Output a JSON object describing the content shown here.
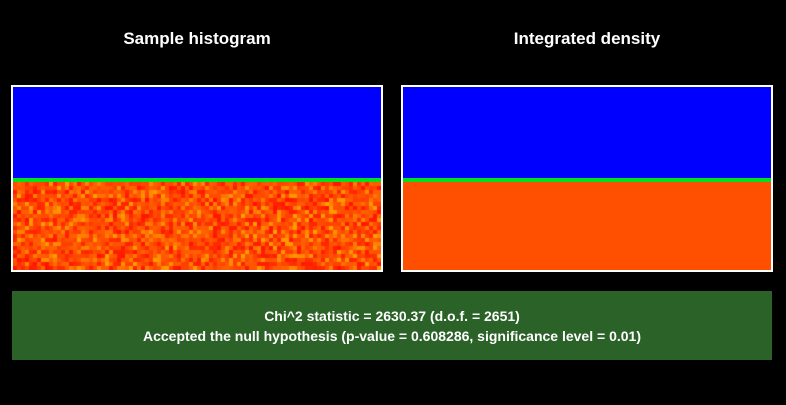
{
  "panels": {
    "left": {
      "title": "Sample histogram",
      "fill": "noisy",
      "colors": {
        "upper": "#0000ff",
        "divider": "#00e020",
        "lower_base": "#ff4a00"
      }
    },
    "right": {
      "title": "Integrated density",
      "fill": "uniform",
      "colors": {
        "upper": "#0000ff",
        "divider": "#00e020",
        "lower_base": "#ff4f00"
      }
    }
  },
  "result": {
    "line1": "Chi^2 statistic = 2630.37 (d.o.f. = 2651)",
    "line2": "Accepted the null hypothesis (p-value = 0.608286, significance level = 0.01)",
    "background": "#2a6228"
  }
}
